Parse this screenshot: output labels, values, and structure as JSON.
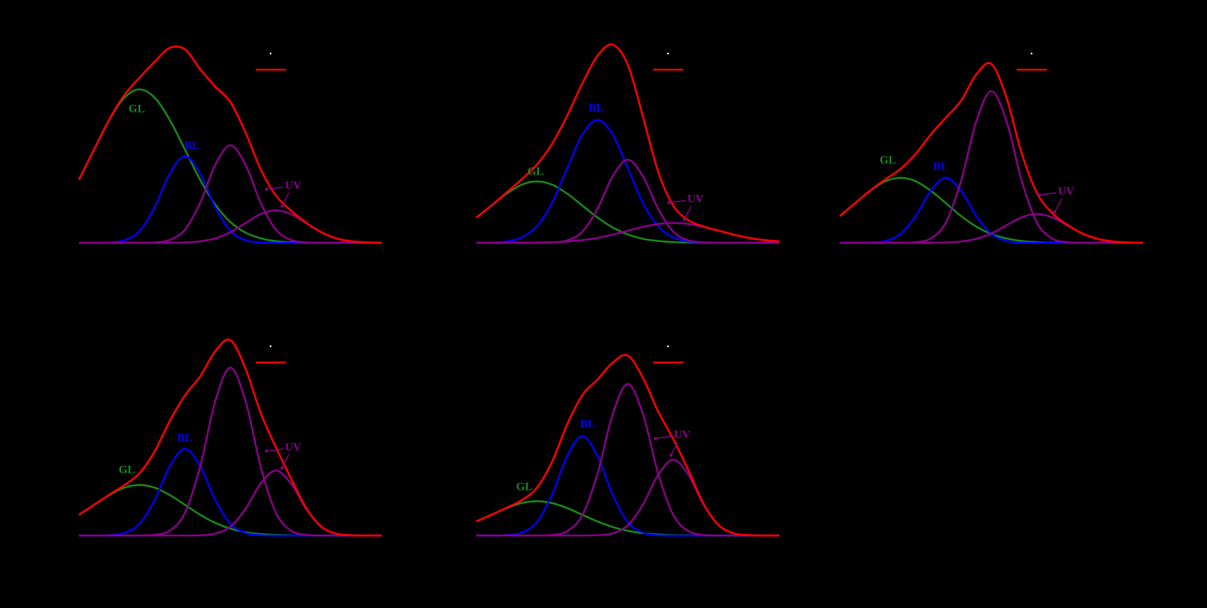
{
  "chart_data": [
    {
      "type": "line",
      "x": [
        0,
        5,
        10,
        15,
        20,
        25,
        30,
        35,
        40,
        45,
        50,
        55,
        60,
        65,
        70,
        75,
        80,
        85,
        90,
        95,
        100
      ],
      "xlim": [
        0,
        100
      ],
      "ylim": [
        0,
        115
      ],
      "series": [
        {
          "color": "#ff0000",
          "values": [
            34.9,
            51.6,
            68.2,
            81.8,
            91.5,
            100.3,
            108,
            107.1,
            96.2,
            86.5,
            77.9,
            61.1,
            40.7,
            26.2,
            17.8,
            11.1,
            5.9,
            2.4,
            0.8,
            0.2,
            0
          ]
        },
        {
          "color": "#1a8a1a",
          "values": [
            34.9,
            51.6,
            68,
            80.4,
            85,
            80.4,
            68,
            51.6,
            34.9,
            21.2,
            11.5,
            5.6,
            2.5,
            0.9,
            0.3,
            0,
            0,
            0,
            0,
            0,
            0
          ]
        },
        {
          "color": "#0000ff",
          "values": [
            0,
            0,
            0.2,
            1.4,
            6.5,
            19.7,
            38.4,
            48,
            38.4,
            19.7,
            6.5,
            1.4,
            0.2,
            0,
            0,
            0,
            0,
            0,
            0,
            0,
            0
          ]
        },
        {
          "color": "#8b008b",
          "values": [
            0,
            0,
            0,
            0,
            0,
            0.2,
            1.6,
            7.3,
            22.1,
            43.2,
            54,
            43.2,
            22.1,
            7.3,
            1.6,
            0.2,
            0,
            0,
            0,
            0,
            0
          ]
        },
        {
          "color": "#8b008b",
          "values": [
            0,
            0,
            0,
            0,
            0,
            0,
            0,
            0.2,
            0.8,
            2.4,
            5.9,
            10.9,
            15.9,
            18,
            15.9,
            10.9,
            5.9,
            2.4,
            0.8,
            0.2,
            0
          ]
        }
      ],
      "annotations": [
        "GL",
        "BL",
        "UV"
      ]
    },
    {
      "type": "line",
      "x": [
        0,
        5,
        10,
        15,
        20,
        25,
        30,
        35,
        40,
        45,
        50,
        55,
        60,
        65,
        70,
        75,
        80,
        85,
        90,
        95,
        100
      ],
      "xlim": [
        0,
        100
      ],
      "ylim": [
        0,
        115
      ],
      "series": [
        {
          "color": "#ff0000",
          "values": [
            14,
            20.6,
            27.9,
            35.2,
            43.3,
            54.8,
            70.5,
            88.3,
            103.6,
            109.8,
            98.6,
            69.9,
            39.5,
            20.6,
            12.5,
            9,
            6.7,
            4.5,
            2.7,
            1.5,
            0.7
          ]
        },
        {
          "color": "#1a8a1a",
          "values": [
            14,
            20.6,
            27.2,
            32.2,
            34,
            32.2,
            27.2,
            20.6,
            14,
            8.5,
            4.6,
            2.2,
            1,
            0.4,
            0.1,
            0,
            0,
            0,
            0,
            0,
            0
          ]
        },
        {
          "color": "#0000ff",
          "values": [
            0,
            0,
            0.7,
            3,
            9.2,
            22.1,
            41.3,
            60,
            68,
            60,
            41.3,
            22.1,
            9.2,
            3,
            0.7,
            0,
            0,
            0,
            0,
            0,
            0
          ]
        },
        {
          "color": "#8b008b",
          "values": [
            0,
            0,
            0,
            0,
            0,
            0.2,
            1.3,
            6.2,
            18.9,
            36.8,
            46,
            36.8,
            18.9,
            6.2,
            1.3,
            0.2,
            0,
            0,
            0,
            0,
            0
          ]
        },
        {
          "color": "#8b008b",
          "values": [
            0,
            0,
            0,
            0,
            0.1,
            0.3,
            0.7,
            1.5,
            2.7,
            4.5,
            6.7,
            8.8,
            10.4,
            11,
            10.4,
            8.8,
            6.7,
            4.5,
            2.7,
            1.5,
            0.7
          ]
        }
      ],
      "annotations": [
        "GL",
        "BL",
        "UV"
      ]
    },
    {
      "type": "line",
      "x": [
        0,
        5,
        10,
        15,
        20,
        25,
        30,
        35,
        40,
        45,
        50,
        55,
        60,
        65,
        70,
        75,
        80,
        85,
        90,
        95,
        100
      ],
      "xlim": [
        0,
        100
      ],
      "ylim": [
        0,
        115
      ],
      "series": [
        {
          "color": "#ff0000",
          "values": [
            14.8,
            21.9,
            28.9,
            35.1,
            40.9,
            49.2,
            60,
            69.4,
            78.7,
            93.2,
            99,
            80.3,
            49.6,
            27.7,
            16.6,
            10,
            5.2,
            2.2,
            0.7,
            0.2,
            0
          ]
        },
        {
          "color": "#1a8a1a",
          "values": [
            14.8,
            21.9,
            28.8,
            34.1,
            36,
            34.1,
            28.8,
            21.9,
            14.8,
            9,
            4.9,
            2.4,
            1,
            0.4,
            0.1,
            0,
            0,
            0,
            0,
            0,
            0
          ]
        },
        {
          "color": "#0000ff",
          "values": [
            0,
            0,
            0.1,
            1,
            4.9,
            14.8,
            28.8,
            36,
            28.8,
            14.8,
            4.9,
            1,
            0.1,
            0,
            0,
            0,
            0,
            0,
            0,
            0,
            0
          ]
        },
        {
          "color": "#8b008b",
          "values": [
            0,
            0,
            0,
            0,
            0,
            0.3,
            2.4,
            11.3,
            34.4,
            67.2,
            84,
            67.2,
            34.4,
            11.3,
            2.4,
            0.3,
            0,
            0,
            0,
            0,
            0
          ]
        },
        {
          "color": "#8b008b",
          "values": [
            0,
            0,
            0,
            0,
            0,
            0,
            0,
            0.2,
            0.7,
            2.2,
            5.2,
            9.7,
            14.1,
            16,
            14.1,
            9.7,
            5.2,
            2.2,
            0.7,
            0.2,
            0
          ]
        }
      ],
      "annotations": [
        "GL",
        "BL",
        "UV"
      ]
    },
    {
      "type": "line",
      "x": [
        0,
        5,
        10,
        15,
        20,
        25,
        30,
        35,
        40,
        45,
        50,
        55,
        60,
        65,
        70,
        75,
        80,
        85,
        90,
        95,
        100
      ],
      "xlim": [
        0,
        100
      ],
      "ylim": [
        0,
        115
      ],
      "series": [
        {
          "color": "#ff0000",
          "values": [
            11.5,
            17,
            22.6,
            27.9,
            34.5,
            46.6,
            63.5,
            77.6,
            88.1,
            102.1,
            108.2,
            92.4,
            67.9,
            48.9,
            31.6,
            15.2,
            4.9,
            1,
            0.1,
            0,
            0
          ]
        },
        {
          "color": "#1a8a1a",
          "values": [
            11.5,
            17,
            22.4,
            26.5,
            28,
            26.5,
            22.4,
            17,
            11.5,
            7,
            3.8,
            1.8,
            0.8,
            0.3,
            0.1,
            0,
            0,
            0,
            0,
            0,
            0
          ]
        },
        {
          "color": "#0000ff",
          "values": [
            0,
            0,
            0.2,
            1.4,
            6.5,
            19.7,
            38.4,
            48,
            38.4,
            19.7,
            6.5,
            1.4,
            0.2,
            0,
            0,
            0,
            0,
            0,
            0,
            0,
            0
          ]
        },
        {
          "color": "#8b008b",
          "values": [
            0,
            0,
            0,
            0,
            0,
            0.4,
            2.7,
            12.6,
            38.1,
            74.4,
            93,
            74.4,
            38.1,
            12.6,
            2.7,
            0.4,
            0,
            0,
            0,
            0,
            0
          ]
        },
        {
          "color": "#8b008b",
          "values": [
            0,
            0,
            0,
            0,
            0,
            0,
            0,
            0,
            0.1,
            1,
            4.9,
            14.8,
            28.8,
            36,
            28.8,
            14.8,
            4.9,
            1,
            0.1,
            0,
            0
          ]
        }
      ],
      "annotations": [
        "GL",
        "BL",
        "UV"
      ]
    },
    {
      "type": "line",
      "x": [
        0,
        5,
        10,
        15,
        20,
        25,
        30,
        35,
        40,
        45,
        50,
        55,
        60,
        65,
        70,
        75,
        80,
        85,
        90,
        95,
        100
      ],
      "xlim": [
        0,
        100
      ],
      "ylim": [
        0,
        115
      ],
      "series": [
        {
          "color": "#ff0000",
          "values": [
            7.8,
            11.5,
            15.4,
            19.6,
            26.4,
            40.9,
            61.6,
            77.8,
            86.4,
            95.7,
            99.7,
            87.3,
            68.8,
            53.5,
            36.1,
            17.5,
            5.7,
            1.2,
            0.2,
            0,
            0
          ]
        },
        {
          "color": "#1a8a1a",
          "values": [
            7.8,
            11.5,
            15.2,
            18,
            19,
            18,
            15.2,
            11.5,
            7.8,
            4.7,
            2.6,
            1.3,
            0.6,
            0.2,
            0.1,
            0,
            0,
            0,
            0,
            0,
            0
          ]
        },
        {
          "color": "#0000ff",
          "values": [
            0,
            0,
            0.2,
            1.6,
            7.4,
            22.6,
            44,
            55,
            44,
            22.6,
            7.4,
            1.6,
            0.2,
            0,
            0,
            0,
            0,
            0,
            0,
            0,
            0
          ]
        },
        {
          "color": "#8b008b",
          "values": [
            0,
            0,
            0,
            0,
            0,
            0.3,
            2.4,
            11.3,
            34.4,
            67.2,
            84,
            67.2,
            34.4,
            11.3,
            2.4,
            0.3,
            0,
            0,
            0,
            0,
            0
          ]
        },
        {
          "color": "#8b008b",
          "values": [
            0,
            0,
            0,
            0,
            0,
            0,
            0,
            0,
            0.2,
            1.2,
            5.7,
            17.2,
            33.6,
            42,
            33.6,
            17.2,
            5.7,
            1.2,
            0.2,
            0,
            0
          ]
        }
      ],
      "annotations": [
        "GL",
        "BL",
        "UV"
      ]
    }
  ]
}
